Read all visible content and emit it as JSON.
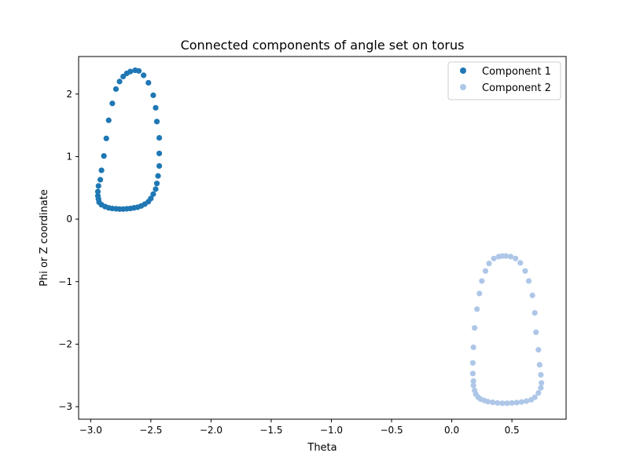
{
  "chart_data": {
    "type": "scatter",
    "title": "Connected components of angle set on torus",
    "xlabel": "Theta",
    "ylabel": "Phi or Z coordinate",
    "xlim": [
      -3.1,
      0.95
    ],
    "ylim": [
      -3.2,
      2.6
    ],
    "xticks": [
      -3.0,
      -2.5,
      -2.0,
      -1.5,
      -1.0,
      -0.5,
      0.0,
      0.5
    ],
    "xtick_labels": [
      "−3.0",
      "−2.5",
      "−2.0",
      "−1.5",
      "−1.0",
      "−0.5",
      "0.0",
      "0.5"
    ],
    "yticks": [
      2,
      1,
      0,
      -1,
      -2,
      -3
    ],
    "ytick_labels": [
      "2",
      "1",
      "0",
      "−1",
      "−2",
      "−3"
    ],
    "grid": false,
    "legend_position": "upper-right",
    "series": [
      {
        "name": "Component 1",
        "color": "#1f77b4",
        "points": [
          [
            -2.63,
            2.38
          ],
          [
            -2.6,
            2.37
          ],
          [
            -2.56,
            2.3
          ],
          [
            -2.52,
            2.18
          ],
          [
            -2.48,
            1.98
          ],
          [
            -2.46,
            1.78
          ],
          [
            -2.45,
            1.56
          ],
          [
            -2.43,
            1.3
          ],
          [
            -2.43,
            1.05
          ],
          [
            -2.43,
            0.85
          ],
          [
            -2.44,
            0.69
          ],
          [
            -2.45,
            0.57
          ],
          [
            -2.46,
            0.48
          ],
          [
            -2.48,
            0.4
          ],
          [
            -2.5,
            0.33
          ],
          [
            -2.52,
            0.28
          ],
          [
            -2.55,
            0.24
          ],
          [
            -2.58,
            0.21
          ],
          [
            -2.61,
            0.19
          ],
          [
            -2.64,
            0.18
          ],
          [
            -2.67,
            0.17
          ],
          [
            -2.7,
            0.165
          ],
          [
            -2.73,
            0.16
          ],
          [
            -2.76,
            0.16
          ],
          [
            -2.79,
            0.165
          ],
          [
            -2.82,
            0.17
          ],
          [
            -2.85,
            0.18
          ],
          [
            -2.88,
            0.2
          ],
          [
            -2.91,
            0.23
          ],
          [
            -2.93,
            0.27
          ],
          [
            -2.935,
            0.32
          ],
          [
            -2.94,
            0.37
          ],
          [
            -2.94,
            0.44
          ],
          [
            -2.935,
            0.53
          ],
          [
            -2.92,
            0.63
          ],
          [
            -2.91,
            0.78
          ],
          [
            -2.89,
            1.01
          ],
          [
            -2.87,
            1.29
          ],
          [
            -2.85,
            1.58
          ],
          [
            -2.82,
            1.85
          ],
          [
            -2.79,
            2.08
          ],
          [
            -2.76,
            2.2
          ],
          [
            -2.73,
            2.28
          ],
          [
            -2.7,
            2.33
          ],
          [
            -2.67,
            2.36
          ]
        ]
      },
      {
        "name": "Component 2",
        "color": "#aec7e8",
        "points": [
          [
            0.45,
            -0.59
          ],
          [
            0.49,
            -0.6
          ],
          [
            0.53,
            -0.63
          ],
          [
            0.57,
            -0.7
          ],
          [
            0.61,
            -0.83
          ],
          [
            0.64,
            -0.99
          ],
          [
            0.67,
            -1.22
          ],
          [
            0.69,
            -1.5
          ],
          [
            0.7,
            -1.81
          ],
          [
            0.72,
            -2.09
          ],
          [
            0.73,
            -2.33
          ],
          [
            0.74,
            -2.49
          ],
          [
            0.745,
            -2.62
          ],
          [
            0.74,
            -2.7
          ],
          [
            0.72,
            -2.78
          ],
          [
            0.69,
            -2.85
          ],
          [
            0.66,
            -2.89
          ],
          [
            0.62,
            -2.91
          ],
          [
            0.58,
            -2.925
          ],
          [
            0.54,
            -2.935
          ],
          [
            0.5,
            -2.94
          ],
          [
            0.46,
            -2.945
          ],
          [
            0.42,
            -2.945
          ],
          [
            0.38,
            -2.94
          ],
          [
            0.34,
            -2.93
          ],
          [
            0.3,
            -2.92
          ],
          [
            0.27,
            -2.9
          ],
          [
            0.24,
            -2.88
          ],
          [
            0.22,
            -2.85
          ],
          [
            0.2,
            -2.8
          ],
          [
            0.19,
            -2.74
          ],
          [
            0.18,
            -2.66
          ],
          [
            0.18,
            -2.59
          ],
          [
            0.175,
            -2.47
          ],
          [
            0.175,
            -2.3
          ],
          [
            0.18,
            -2.05
          ],
          [
            0.19,
            -1.74
          ],
          [
            0.21,
            -1.44
          ],
          [
            0.23,
            -1.19
          ],
          [
            0.25,
            -0.99
          ],
          [
            0.28,
            -0.83
          ],
          [
            0.31,
            -0.71
          ],
          [
            0.35,
            -0.63
          ],
          [
            0.39,
            -0.6
          ],
          [
            0.42,
            -0.59
          ]
        ]
      }
    ]
  }
}
